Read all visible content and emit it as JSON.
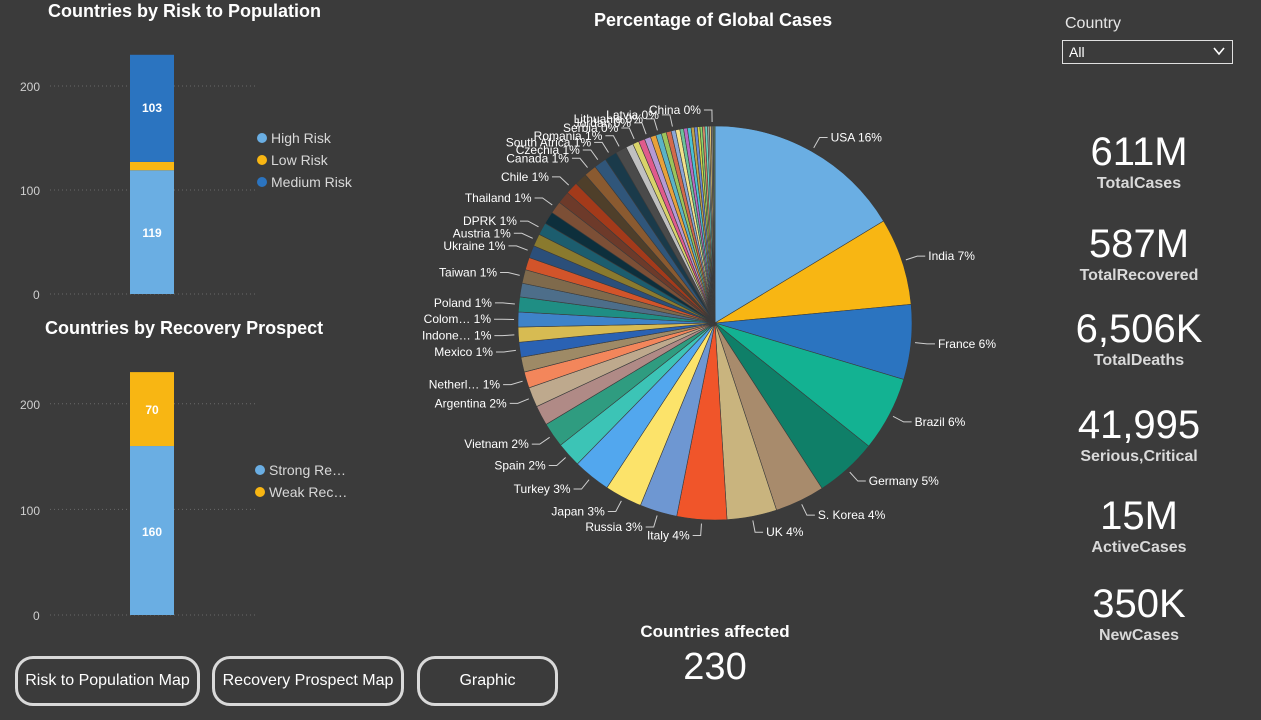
{
  "risk_chart": {
    "title": "Countries by Risk to Population",
    "ticks": [
      "200",
      "100",
      "0"
    ],
    "legend": [
      {
        "label": "High Risk",
        "color": "#6aaee3"
      },
      {
        "label": "Low Risk",
        "color": "#f8b613"
      },
      {
        "label": "Medium Risk",
        "color": "#2b74c0"
      }
    ],
    "bar_labels": {
      "top": "103",
      "bottom": "119"
    }
  },
  "recovery_chart": {
    "title": "Countries by Recovery Prospect",
    "ticks": [
      "200",
      "100",
      "0"
    ],
    "legend": [
      {
        "label": "Strong Re…",
        "color": "#6aaee3"
      },
      {
        "label": "Weak Rec…",
        "color": "#f8b613"
      }
    ],
    "bar_labels": {
      "top": "70",
      "bottom": "160"
    }
  },
  "pie_chart": {
    "title": "Percentage of Global Cases"
  },
  "slicer": {
    "label": "Country",
    "value": "All"
  },
  "kpis": [
    {
      "value": "611M",
      "label": "TotalCases"
    },
    {
      "value": "587M",
      "label": "TotalRecovered"
    },
    {
      "value": "6,506K",
      "label": "TotalDeaths"
    },
    {
      "value": "41,995",
      "label": "Serious,Critical"
    },
    {
      "value": "15M",
      "label": "ActiveCases"
    },
    {
      "value": "350K",
      "label": "NewCases"
    }
  ],
  "countries_affected": {
    "label": "Countries affected",
    "value": "230"
  },
  "buttons": {
    "risk_map": "Risk to Population Map",
    "recovery_map": "Recovery Prospect Map",
    "graphic": "Graphic"
  },
  "chart_data": [
    {
      "type": "bar",
      "subtype": "stacked",
      "title": "Countries by Risk to Population",
      "categories": [
        ""
      ],
      "ylim": [
        0,
        230
      ],
      "yticks": [
        0,
        100,
        200
      ],
      "grid": true,
      "legend_position": "right",
      "series": [
        {
          "name": "High Risk",
          "values": [
            119
          ],
          "color": "#6aaee3"
        },
        {
          "name": "Low Risk",
          "values": [
            8
          ],
          "color": "#f8b613"
        },
        {
          "name": "Medium Risk",
          "values": [
            103
          ],
          "color": "#2b74c0"
        }
      ]
    },
    {
      "type": "bar",
      "subtype": "stacked",
      "title": "Countries by Recovery Prospect",
      "categories": [
        ""
      ],
      "ylim": [
        0,
        230
      ],
      "yticks": [
        0,
        100,
        200
      ],
      "grid": true,
      "legend_position": "right",
      "series": [
        {
          "name": "Strong Re…",
          "values": [
            160
          ],
          "color": "#6aaee3"
        },
        {
          "name": "Weak Rec…",
          "values": [
            70
          ],
          "color": "#f8b613"
        }
      ]
    },
    {
      "type": "pie",
      "title": "Percentage of Global Cases",
      "slices": [
        {
          "label": "USA 16%",
          "value": 16,
          "color": "#6aaee3"
        },
        {
          "label": "India 7%",
          "value": 7,
          "color": "#f8b613"
        },
        {
          "label": "France 6%",
          "value": 6,
          "color": "#2b74c0"
        },
        {
          "label": "Brazil 6%",
          "value": 6,
          "color": "#13b292"
        },
        {
          "label": "Germany 5%",
          "value": 5,
          "color": "#0f7f68"
        },
        {
          "label": "S. Korea 4%",
          "value": 4,
          "color": "#a88b6c"
        },
        {
          "label": "UK 4%",
          "value": 4,
          "color": "#c9b47e"
        },
        {
          "label": "Italy 4%",
          "value": 4,
          "color": "#f0552a"
        },
        {
          "label": "Russia 3%",
          "value": 3,
          "color": "#6e97d2"
        },
        {
          "label": "Japan 3%",
          "value": 3,
          "color": "#fce36a"
        },
        {
          "label": "Turkey 3%",
          "value": 3,
          "color": "#52a7ee"
        },
        {
          "label": "Spain 2%",
          "value": 2,
          "color": "#3cc4b6"
        },
        {
          "label": "Vietnam 2%",
          "value": 2,
          "color": "#2f9c80"
        },
        {
          "label": "",
          "value": 1.6,
          "color": "#b08a86"
        },
        {
          "label": "Argentina 2%",
          "value": 1.6,
          "color": "#bea98d"
        },
        {
          "label": "Netherl… 1%",
          "value": 1.3,
          "color": "#f3865b"
        },
        {
          "label": "",
          "value": 1.2,
          "color": "#9e8a66"
        },
        {
          "label": "Mexico 1%",
          "value": 1.2,
          "color": "#2a62b3"
        },
        {
          "label": "Indone… 1%",
          "value": 1.2,
          "color": "#d7bb52"
        },
        {
          "label": "Colom… 1%",
          "value": 1.2,
          "color": "#3e83c9"
        },
        {
          "label": "Poland 1%",
          "value": 1.2,
          "color": "#1f8e84"
        },
        {
          "label": "",
          "value": 1.1,
          "color": "#4d6e8a"
        },
        {
          "label": "Taiwan 1%",
          "value": 1.1,
          "color": "#7f6a4c"
        },
        {
          "label": "",
          "value": 1.0,
          "color": "#d2542a"
        },
        {
          "label": "Ukraine 1%",
          "value": 1.0,
          "color": "#2b4f7a"
        },
        {
          "label": "Austria 1%",
          "value": 1.0,
          "color": "#8a7a2e"
        },
        {
          "label": "DPRK 1%",
          "value": 1.0,
          "color": "#1c5d6e"
        },
        {
          "label": "",
          "value": 1.0,
          "color": "#0d2f3c"
        },
        {
          "label": "Thailand 1%",
          "value": 1.0,
          "color": "#7c4f36"
        },
        {
          "label": "",
          "value": 1.0,
          "color": "#6d3a2a"
        },
        {
          "label": "Chile 1%",
          "value": 1.0,
          "color": "#a33a1a"
        },
        {
          "label": "",
          "value": 1.0,
          "color": "#4f3f2a"
        },
        {
          "label": "Canada 1%",
          "value": 1.0,
          "color": "#8a5a30"
        },
        {
          "label": "Czechia 1%",
          "value": 1.0,
          "color": "#30567a"
        },
        {
          "label": "South Africa 1%",
          "value": 1.0,
          "color": "#1a3a4a"
        },
        {
          "label": "Romania 1%",
          "value": 0.9,
          "color": "#4a4a4a"
        },
        {
          "label": "",
          "value": 0.6,
          "color": "#c0c0c0"
        },
        {
          "label": "Serbia 0%",
          "value": 0.5,
          "color": "#d9d36a"
        },
        {
          "label": "",
          "value": 0.5,
          "color": "#e05a8c"
        },
        {
          "label": "Jordan 0%",
          "value": 0.5,
          "color": "#b49ad6"
        },
        {
          "label": "",
          "value": 0.45,
          "color": "#e8a13a"
        },
        {
          "label": "Lithuania 0%",
          "value": 0.45,
          "color": "#5ab3c6"
        },
        {
          "label": "",
          "value": 0.4,
          "color": "#9bc45a"
        },
        {
          "label": "",
          "value": 0.4,
          "color": "#d26a4a"
        },
        {
          "label": "Latvia 0%",
          "value": 0.35,
          "color": "#8aa7d6"
        },
        {
          "label": "",
          "value": 0.35,
          "color": "#f2e28a"
        },
        {
          "label": "",
          "value": 0.3,
          "color": "#6ac29a"
        },
        {
          "label": "",
          "value": 0.3,
          "color": "#b86ac2"
        },
        {
          "label": "",
          "value": 0.3,
          "color": "#4ac2d6"
        },
        {
          "label": "",
          "value": 0.25,
          "color": "#c2a24a"
        },
        {
          "label": "",
          "value": 0.25,
          "color": "#6a8ad6"
        },
        {
          "label": "",
          "value": 0.2,
          "color": "#d6d64a"
        },
        {
          "label": "",
          "value": 0.2,
          "color": "#8ad66a"
        },
        {
          "label": "",
          "value": 0.2,
          "color": "#d68a6a"
        },
        {
          "label": "",
          "value": 0.2,
          "color": "#6ad6c2"
        },
        {
          "label": "",
          "value": 0.15,
          "color": "#a0a0a0"
        },
        {
          "label": "",
          "value": 0.15,
          "color": "#e0c070"
        },
        {
          "label": "China 0%",
          "value": 0.15,
          "color": "#7a7a7a"
        },
        {
          "label": "",
          "value": 0.15,
          "color": "#5a7a5a"
        }
      ]
    }
  ]
}
